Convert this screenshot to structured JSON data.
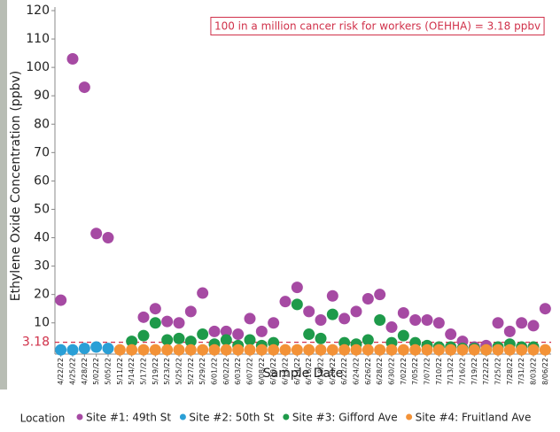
{
  "chart_data": {
    "type": "scatter",
    "y_label": "Ethylene Oxide Concentration (ppbv)",
    "x_label": "Sample Date",
    "annotation": "100 in a million cancer risk for workers (OEHHA) = 3.18 ppbv",
    "reference": {
      "value": 3.18,
      "label": "3.18",
      "color": "#d0314a"
    },
    "legend_title": "Location",
    "categories": [
      "4/22/22",
      "4/25/22",
      "4/28/22",
      "5/02/22",
      "5/05/22",
      "5/11/22",
      "5/14/22",
      "5/17/22",
      "5/19/22",
      "5/23/22",
      "5/25/22",
      "5/27/22",
      "5/29/22",
      "6/01/22",
      "6/02/22",
      "6/03/22",
      "6/07/22",
      "6/08/22",
      "6/10/22",
      "6/13/22",
      "6/14/22",
      "6/16/22",
      "6/18/22",
      "6/20/22",
      "6/22/22",
      "6/24/22",
      "6/26/22",
      "6/28/22",
      "6/30/22",
      "7/02/22",
      "7/05/22",
      "7/07/22",
      "7/10/22",
      "7/13/22",
      "7/16/22",
      "7/19/22",
      "7/22/22",
      "7/25/22",
      "7/28/22",
      "7/31/22",
      "8/03/22",
      "8/06/22"
    ],
    "series": [
      {
        "name": "Site #1: 49th St",
        "color": "#a64aa3",
        "values": [
          18,
          103,
          93,
          41.5,
          40,
          null,
          null,
          12,
          15,
          10.5,
          10,
          14,
          20.5,
          7,
          7,
          6,
          11.5,
          7,
          10,
          17.5,
          22.5,
          14,
          11,
          19.5,
          11.5,
          14,
          18.5,
          20,
          8.5,
          13.5,
          11,
          11,
          10,
          6,
          3.5,
          1.5,
          2,
          10,
          7,
          10,
          9,
          15
        ]
      },
      {
        "name": "Site #2: 50th St",
        "color": "#2a9fd6",
        "values": [
          0.5,
          0.5,
          1,
          1.5,
          1,
          null,
          null,
          null,
          null,
          null,
          null,
          null,
          null,
          null,
          null,
          null,
          null,
          null,
          null,
          null,
          null,
          null,
          null,
          null,
          null,
          null,
          null,
          null,
          null,
          null,
          null,
          null,
          null,
          null,
          null,
          null,
          null,
          null,
          null,
          null,
          null,
          null
        ]
      },
      {
        "name": "Site #3: Gifford Ave",
        "color": "#1e9a4a",
        "values": [
          null,
          null,
          null,
          null,
          null,
          null,
          3.5,
          5.5,
          10,
          4,
          4.5,
          3.5,
          6,
          2.5,
          4,
          2,
          4,
          2,
          3,
          null,
          16.5,
          6,
          4.5,
          13,
          3,
          2.5,
          4,
          11,
          3,
          5.5,
          3,
          2,
          1.5,
          1.5,
          1,
          1,
          0.5,
          1.5,
          2.5,
          1.5,
          1.5,
          null
        ]
      },
      {
        "name": "Site #4: Fruitland Ave",
        "color": "#f39237",
        "values": [
          null,
          null,
          null,
          null,
          null,
          0.5,
          0.5,
          0.5,
          0.5,
          0.5,
          0.5,
          0.5,
          0.5,
          0.5,
          0.5,
          0.5,
          0.5,
          0.5,
          0.5,
          0.5,
          0.5,
          0.5,
          0.5,
          0.5,
          0.5,
          0.5,
          0.5,
          0.5,
          0.5,
          0.5,
          0.5,
          0.5,
          0.5,
          0.5,
          0.5,
          0.5,
          0.5,
          0.5,
          0.5,
          0.5,
          0.5,
          0.5
        ]
      }
    ],
    "ylim": [
      -1,
      120
    ],
    "yticks": [
      10,
      20,
      30,
      40,
      50,
      60,
      70,
      80,
      90,
      100,
      110,
      120
    ]
  }
}
